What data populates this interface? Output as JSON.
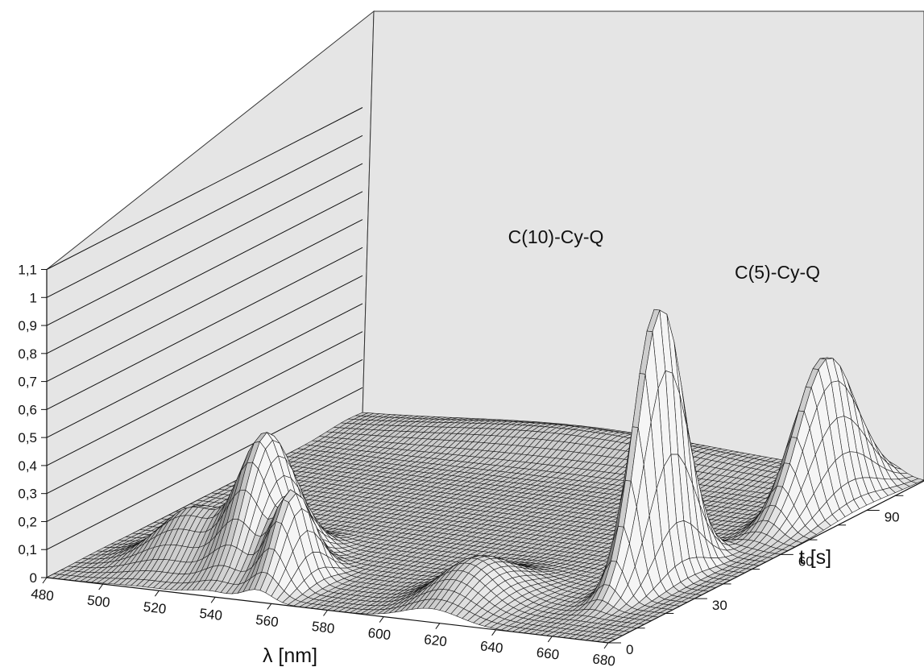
{
  "chart_data": {
    "type": "surface",
    "z_ticks": [
      "0",
      "0,1",
      "0,2",
      "0,3",
      "0,4",
      "0,5",
      "0,6",
      "0,7",
      "0,8",
      "0,9",
      "1",
      "1,1"
    ],
    "x_ticks": [
      "480",
      "500",
      "520",
      "540",
      "560",
      "580",
      "600",
      "620",
      "640",
      "660",
      "680"
    ],
    "y_ticks": [
      "0",
      "30",
      "60",
      "90"
    ],
    "xlabel": "λ [nm]",
    "ylabel": "t [s]",
    "xlim": [
      480,
      680
    ],
    "ylim": [
      0,
      110
    ],
    "zlim": [
      0,
      1.1
    ],
    "grid": true,
    "annotations": [
      {
        "text": "C(10)-Cy-Q",
        "x": 659,
        "y": 38
      },
      {
        "text": "C(5)-Cy-Q",
        "x": 667,
        "y": 88
      }
    ],
    "peaks": [
      {
        "lambda": 659,
        "t": 38,
        "height": 1.0,
        "sigma_lambda": 4,
        "sigma_t": 8
      },
      {
        "lambda": 667,
        "t": 88,
        "height": 0.55,
        "sigma_lambda": 5,
        "sigma_t": 10
      },
      {
        "lambda": 538,
        "t": 20,
        "height": 0.45,
        "sigma_lambda": 7,
        "sigma_t": 8
      },
      {
        "lambda": 555,
        "t": 12,
        "height": 0.32,
        "sigma_lambda": 5,
        "sigma_t": 6
      },
      {
        "lambda": 515,
        "t": 18,
        "height": 0.2,
        "sigma_lambda": 12,
        "sigma_t": 7
      },
      {
        "lambda": 617,
        "t": 15,
        "height": 0.15,
        "sigma_lambda": 10,
        "sigma_t": 10
      },
      {
        "lambda": 560,
        "t": 105,
        "height": 0.07,
        "sigma_lambda": 45,
        "sigma_t": 7
      }
    ]
  }
}
